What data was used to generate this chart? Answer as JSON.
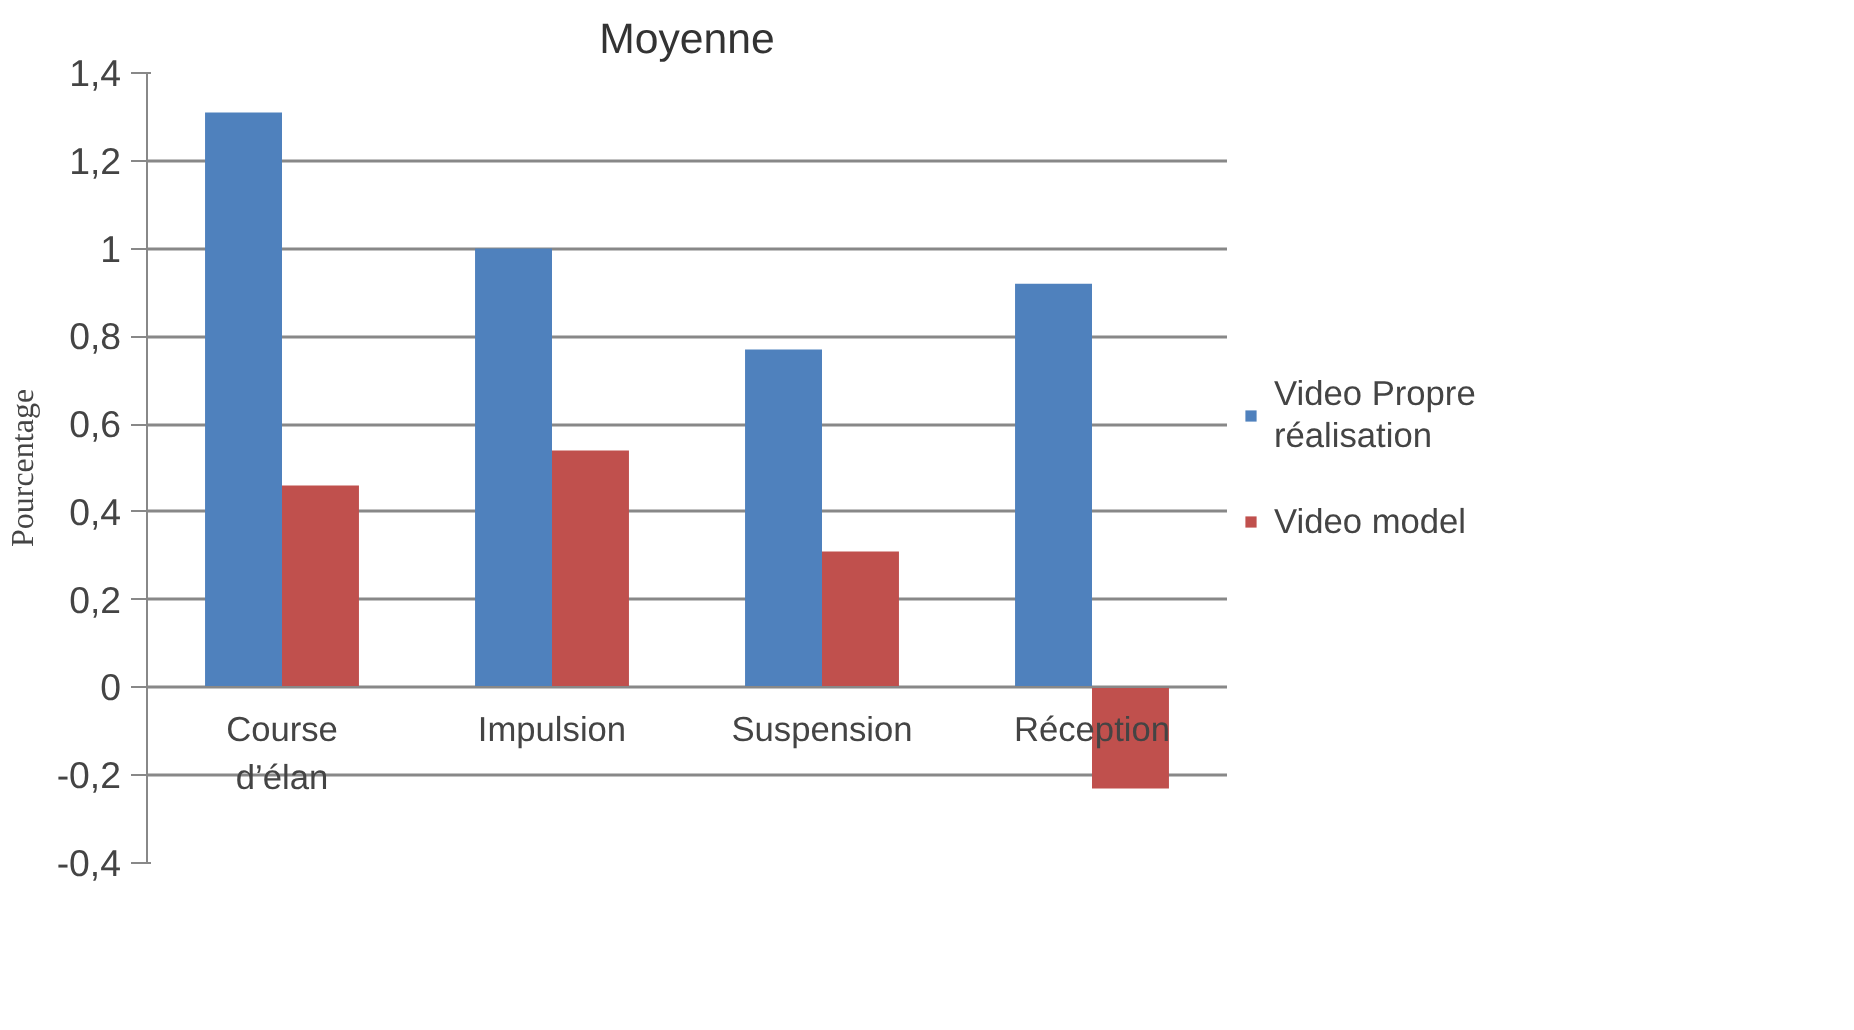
{
  "chart_data": {
    "type": "bar",
    "title": "Moyenne",
    "ylabel": "Pourcentage",
    "categories": [
      "Course d’élan",
      "Impulsion",
      "Suspension",
      "Réception"
    ],
    "series": [
      {
        "name": "Video Propre réalisation",
        "color": "#4f81bd",
        "values": [
          1.31,
          1.0,
          0.77,
          0.92
        ]
      },
      {
        "name": "Video model",
        "color": "#c0504d",
        "values": [
          0.46,
          0.54,
          0.31,
          -0.23
        ]
      }
    ],
    "ylim": [
      -0.4,
      1.4
    ],
    "yticks": [
      {
        "value": -0.4,
        "label": "-0,4"
      },
      {
        "value": -0.2,
        "label": "-0,2"
      },
      0,
      {
        "value": 0.2,
        "label": "0,2"
      },
      {
        "value": 0.4,
        "label": "0,4"
      },
      {
        "value": 0.6,
        "label": "0,6"
      },
      {
        "value": 0.8,
        "label": "0,8"
      },
      1,
      {
        "value": 1.2,
        "label": "1,2"
      },
      {
        "value": 1.4,
        "label": "1,4"
      }
    ],
    "grid": "y",
    "legend": "right"
  }
}
